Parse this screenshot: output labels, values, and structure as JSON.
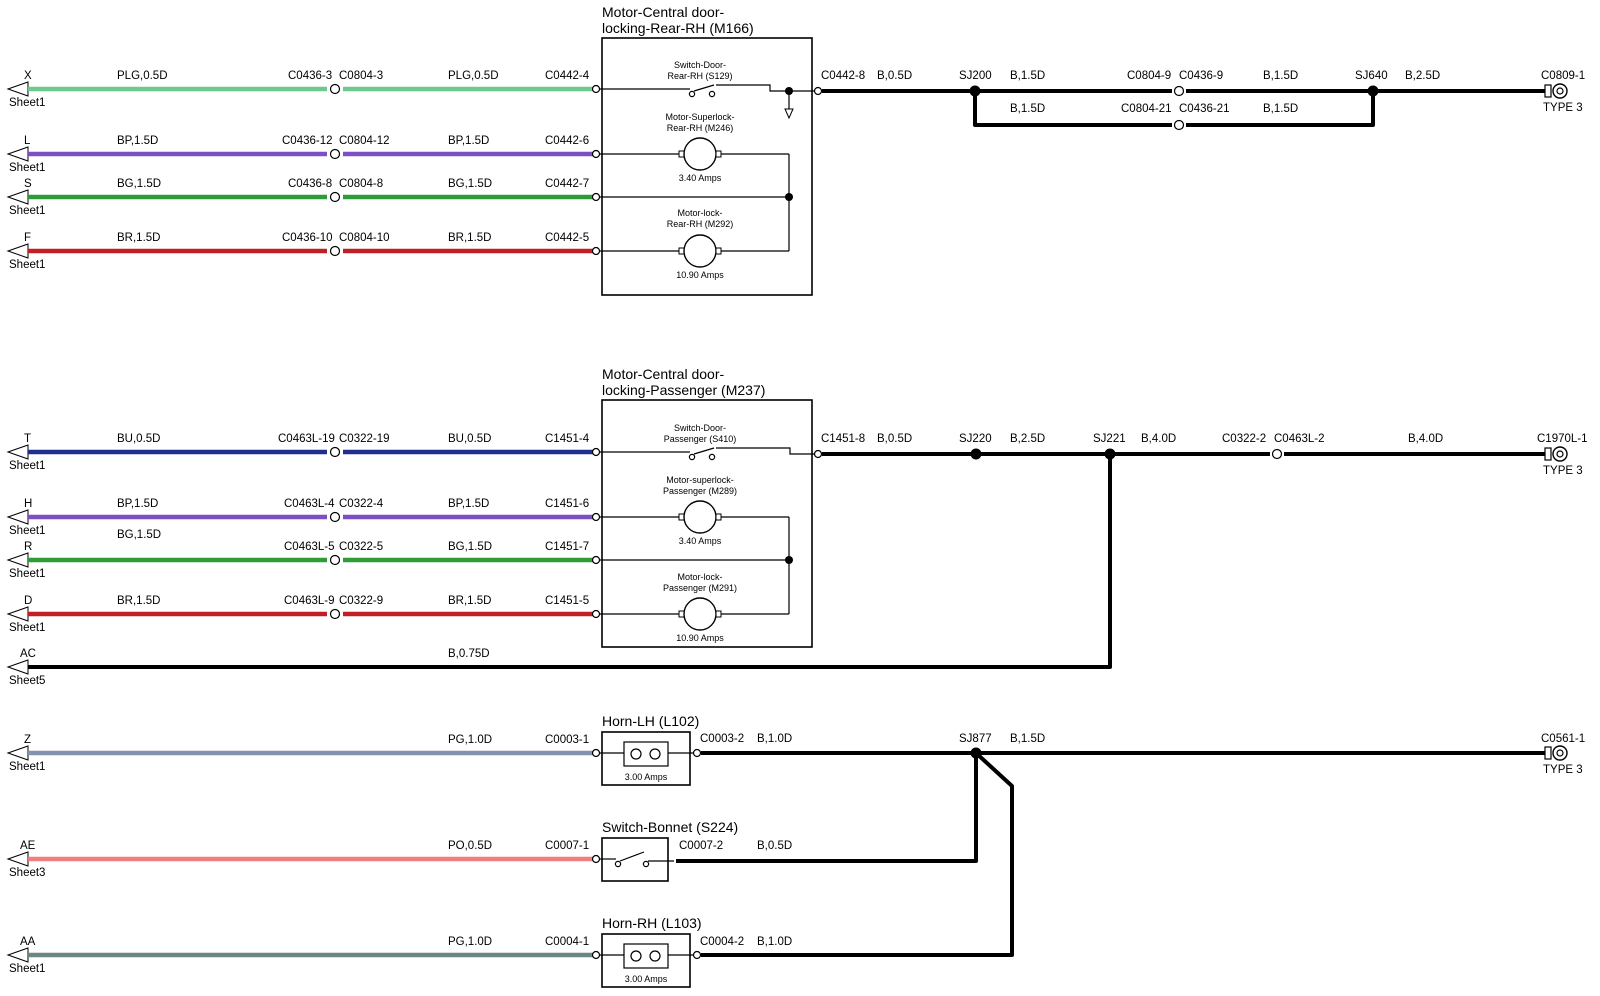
{
  "colors": {
    "PLG": "#6cc98f",
    "BP": "#7d4fc4",
    "BG": "#2e9a38",
    "BR": "#c11f24",
    "BU": "#1f2f8f",
    "PG": "#8393ad",
    "PO": "#ef7f7f",
    "PG2": "#6b8685",
    "ground": "#000000"
  },
  "components": {
    "m166": {
      "title_line1": "Motor-Central door-",
      "title_line2": "locking-Rear-RH (M166)"
    },
    "s129": {
      "line1": "Switch-Door-",
      "line2": "Rear-RH (S129)"
    },
    "m246": {
      "line1": "Motor-Superlock-",
      "line2": "Rear-RH (M246)",
      "amps": "3.40 Amps"
    },
    "m292": {
      "line1": "Motor-lock-",
      "line2": "Rear-RH (M292)",
      "amps": "10.90 Amps"
    },
    "m237": {
      "title_line1": "Motor-Central door-",
      "title_line2": "locking-Passenger (M237)"
    },
    "s410": {
      "line1": "Switch-Door-",
      "line2": "Passenger (S410)"
    },
    "m289": {
      "line1": "Motor-superlock-",
      "line2": "Passenger (M289)",
      "amps": "3.40 Amps"
    },
    "m291": {
      "line1": "Motor-lock-",
      "line2": "Passenger (M291)",
      "amps": "10.90 Amps"
    },
    "l102": {
      "title": "Horn-LH (L102)",
      "amps": "3.00 Amps"
    },
    "s224": {
      "title": "Switch-Bonnet (S224)"
    },
    "l103": {
      "title": "Horn-RH (L103)",
      "amps": "3.00 Amps"
    }
  },
  "signals": [
    {
      "letter": "X",
      "sheet": "Sheet1",
      "wire1": "PLG,0.5D",
      "connA": "C0436-3",
      "connB": "C0804-3",
      "wire2": "PLG,0.5D",
      "term": "C0442-4"
    },
    {
      "letter": "L",
      "sheet": "Sheet1",
      "wire1": "BP,1.5D",
      "connA": "C0436-12",
      "connB": "C0804-12",
      "wire2": "BP,1.5D",
      "term": "C0442-6"
    },
    {
      "letter": "S",
      "sheet": "Sheet1",
      "wire1": "BG,1.5D",
      "connA": "C0436-8",
      "connB": "C0804-8",
      "wire2": "BG,1.5D",
      "term": "C0442-7"
    },
    {
      "letter": "F",
      "sheet": "Sheet1",
      "wire1": "BR,1.5D",
      "connA": "C0436-10",
      "connB": "C0804-10",
      "wire2": "BR,1.5D",
      "term": "C0442-5"
    },
    {
      "letter": "T",
      "sheet": "Sheet1",
      "wire1": "BU,0.5D",
      "connA": "C0463L-19",
      "connB": "C0322-19",
      "wire2": "BU,0.5D",
      "term": "C1451-4"
    },
    {
      "letter": "H",
      "sheet": "Sheet1",
      "wire1": "BP,1.5D",
      "connA": "C0463L-4",
      "connB": "C0322-4",
      "wire2": "BP,1.5D",
      "term": "C1451-6"
    },
    {
      "letter": "R",
      "sheet": "Sheet1",
      "wire1": "BG,1.5D",
      "connA": "C0463L-5",
      "connB": "C0322-5",
      "wire2": "BG,1.5D",
      "term": "C1451-7"
    },
    {
      "letter": "D",
      "sheet": "Sheet1",
      "wire1": "BR,1.5D",
      "connA": "C0463L-9",
      "connB": "C0322-9",
      "wire2": "BR,1.5D",
      "term": "C1451-5"
    },
    {
      "letter": "AC",
      "sheet": "Sheet5",
      "wire2": "B,0.75D"
    },
    {
      "letter": "Z",
      "sheet": "Sheet1",
      "wire2": "PG,1.0D",
      "term": "C0003-1"
    },
    {
      "letter": "AE",
      "sheet": "Sheet3",
      "wire2": "PO,0.5D",
      "term": "C0007-1"
    },
    {
      "letter": "AA",
      "sheet": "Sheet1",
      "wire2": "PG,1.0D",
      "term": "C0004-1"
    }
  ],
  "ground1": {
    "out": "C0442-8",
    "w1": "B,0.5D",
    "sj1": "SJ200",
    "w2": "B,1.5D",
    "connA": "C0804-9",
    "connB": "C0436-9",
    "w3": "B,1.5D",
    "sj2": "SJ640",
    "w4": "B,2.5D",
    "end": "C0809-1",
    "type": "TYPE 3",
    "loop_w1": "B,1.5D",
    "loop_connA": "C0804-21",
    "loop_connB": "C0436-21",
    "loop_w2": "B,1.5D"
  },
  "ground2": {
    "out": "C1451-8",
    "w1": "B,0.5D",
    "sj1": "SJ220",
    "w2": "B,2.5D",
    "sj2": "SJ221",
    "w3": "B,4.0D",
    "connA": "C0322-2",
    "connB": "C0463L-2",
    "w4": "B,4.0D",
    "end": "C1970L-1",
    "type": "TYPE 3"
  },
  "ground3": {
    "out_l102": "C0003-2",
    "w_l102": "B,1.0D",
    "sj": "SJ877",
    "w_main": "B,1.5D",
    "end": "C0561-1",
    "type": "TYPE 3",
    "out_s224": "C0007-2",
    "w_s224": "B,0.5D",
    "out_l103": "C0004-2",
    "w_l103": "B,1.0D"
  }
}
